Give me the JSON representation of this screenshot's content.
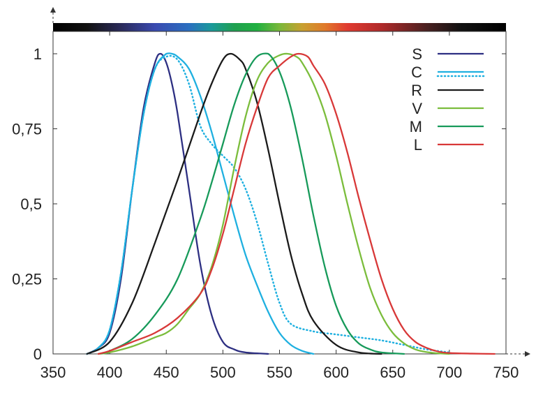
{
  "chart_data": {
    "type": "line",
    "title": "",
    "xlabel": "",
    "ylabel": "",
    "xlim": [
      350,
      750
    ],
    "ylim": [
      0,
      1
    ],
    "grid": false,
    "legend_position": "top-right",
    "x_ticks": [
      {
        "value": 350,
        "label": "350"
      },
      {
        "value": 400,
        "label": "400"
      },
      {
        "value": 450,
        "label": "450"
      },
      {
        "value": 500,
        "label": "500"
      },
      {
        "value": 550,
        "label": "550"
      },
      {
        "value": 600,
        "label": "600"
      },
      {
        "value": 650,
        "label": "650"
      },
      {
        "value": 700,
        "label": "700"
      },
      {
        "value": 750,
        "label": "750"
      }
    ],
    "y_ticks": [
      {
        "value": 0,
        "label": "0"
      },
      {
        "value": 0.25,
        "label": "0,25"
      },
      {
        "value": 0.5,
        "label": "0,5"
      },
      {
        "value": 0.75,
        "label": "0,75"
      },
      {
        "value": 1,
        "label": "1"
      }
    ],
    "spectrum_bar": {
      "stops": [
        {
          "x": 350,
          "color": "#000000"
        },
        {
          "x": 380,
          "color": "#111111"
        },
        {
          "x": 410,
          "color": "#2a2a5a"
        },
        {
          "x": 440,
          "color": "#3a4ab0"
        },
        {
          "x": 470,
          "color": "#2a6fc0"
        },
        {
          "x": 490,
          "color": "#1a9a9a"
        },
        {
          "x": 510,
          "color": "#1fa050"
        },
        {
          "x": 530,
          "color": "#20b040"
        },
        {
          "x": 550,
          "color": "#7ab83a"
        },
        {
          "x": 570,
          "color": "#c8a030"
        },
        {
          "x": 590,
          "color": "#e07a2a"
        },
        {
          "x": 610,
          "color": "#e03a30"
        },
        {
          "x": 640,
          "color": "#b02a2a"
        },
        {
          "x": 680,
          "color": "#4a2020"
        },
        {
          "x": 710,
          "color": "#111111"
        },
        {
          "x": 750,
          "color": "#000000"
        }
      ]
    },
    "series": [
      {
        "name": "S",
        "color": "#2d2f82",
        "dash": "solid",
        "x": [
          380,
          390,
          400,
          410,
          420,
          430,
          440,
          445,
          450,
          455,
          460,
          470,
          480,
          490,
          500,
          510,
          520,
          540
        ],
        "y": [
          0.0,
          0.02,
          0.07,
          0.25,
          0.55,
          0.82,
          0.97,
          1.0,
          0.97,
          0.9,
          0.8,
          0.55,
          0.3,
          0.13,
          0.04,
          0.015,
          0.005,
          0.0
        ]
      },
      {
        "name": "C",
        "color": "#1fb0e0",
        "dash": "solid",
        "x": [
          380,
          390,
          400,
          410,
          420,
          430,
          440,
          450,
          455,
          460,
          470,
          480,
          490,
          500,
          510,
          520,
          530,
          540,
          550,
          560,
          570,
          580
        ],
        "y": [
          0.0,
          0.02,
          0.08,
          0.27,
          0.55,
          0.8,
          0.95,
          1.0,
          1.0,
          0.99,
          0.95,
          0.86,
          0.74,
          0.6,
          0.46,
          0.33,
          0.23,
          0.14,
          0.07,
          0.03,
          0.01,
          0.0
        ]
      },
      {
        "name": "C",
        "color": "#1fb0e0",
        "dash": "dotted",
        "x": [
          380,
          390,
          400,
          410,
          420,
          430,
          440,
          450,
          460,
          470,
          480,
          490,
          500,
          510,
          520,
          530,
          540,
          550,
          560,
          580,
          600,
          620,
          640,
          660,
          680,
          700
        ],
        "y": [
          0.0,
          0.02,
          0.08,
          0.27,
          0.55,
          0.8,
          0.95,
          0.99,
          0.98,
          0.9,
          0.76,
          0.7,
          0.66,
          0.62,
          0.55,
          0.44,
          0.3,
          0.17,
          0.1,
          0.075,
          0.065,
          0.055,
          0.045,
          0.03,
          0.015,
          0.005
        ]
      },
      {
        "name": "R",
        "color": "#1a1a1a",
        "dash": "solid",
        "x": [
          380,
          400,
          420,
          440,
          460,
          480,
          490,
          500,
          507,
          515,
          520,
          530,
          540,
          550,
          560,
          570,
          580,
          600,
          620,
          640
        ],
        "y": [
          0.0,
          0.04,
          0.17,
          0.37,
          0.58,
          0.8,
          0.9,
          0.98,
          1.0,
          0.98,
          0.95,
          0.84,
          0.68,
          0.5,
          0.33,
          0.2,
          0.11,
          0.03,
          0.005,
          0.0
        ]
      },
      {
        "name": "V",
        "color": "#7bbd3c",
        "dash": "solid",
        "x": [
          390,
          400,
          420,
          440,
          450,
          460,
          470,
          480,
          490,
          500,
          510,
          520,
          530,
          540,
          550,
          557,
          565,
          570,
          580,
          590,
          600,
          610,
          620,
          630,
          640,
          650,
          660,
          670,
          680,
          690,
          700
        ],
        "y": [
          0.0,
          0.005,
          0.025,
          0.055,
          0.07,
          0.1,
          0.15,
          0.2,
          0.29,
          0.43,
          0.62,
          0.79,
          0.91,
          0.97,
          0.995,
          1.0,
          0.99,
          0.97,
          0.9,
          0.8,
          0.66,
          0.5,
          0.35,
          0.22,
          0.13,
          0.07,
          0.035,
          0.015,
          0.006,
          0.002,
          0.0
        ]
      },
      {
        "name": "M",
        "color": "#179a5a",
        "dash": "solid",
        "x": [
          390,
          400,
          420,
          440,
          460,
          480,
          490,
          500,
          510,
          520,
          530,
          540,
          550,
          560,
          570,
          580,
          590,
          600,
          610,
          620,
          630,
          640,
          660
        ],
        "y": [
          0.0,
          0.01,
          0.05,
          0.13,
          0.25,
          0.45,
          0.57,
          0.7,
          0.83,
          0.93,
          0.99,
          1.0,
          0.94,
          0.82,
          0.65,
          0.46,
          0.29,
          0.16,
          0.08,
          0.035,
          0.015,
          0.005,
          0.0
        ]
      },
      {
        "name": "L",
        "color": "#d83838",
        "dash": "solid",
        "x": [
          390,
          400,
          420,
          440,
          460,
          480,
          490,
          500,
          510,
          520,
          530,
          540,
          550,
          560,
          567,
          575,
          580,
          590,
          600,
          610,
          620,
          630,
          640,
          650,
          660,
          670,
          680,
          690,
          700,
          720,
          740
        ],
        "y": [
          0.0,
          0.01,
          0.04,
          0.07,
          0.12,
          0.2,
          0.28,
          0.4,
          0.55,
          0.7,
          0.82,
          0.92,
          0.96,
          0.99,
          1.0,
          0.99,
          0.96,
          0.9,
          0.8,
          0.67,
          0.52,
          0.38,
          0.25,
          0.15,
          0.08,
          0.04,
          0.02,
          0.008,
          0.003,
          0.001,
          0.0
        ]
      }
    ]
  }
}
